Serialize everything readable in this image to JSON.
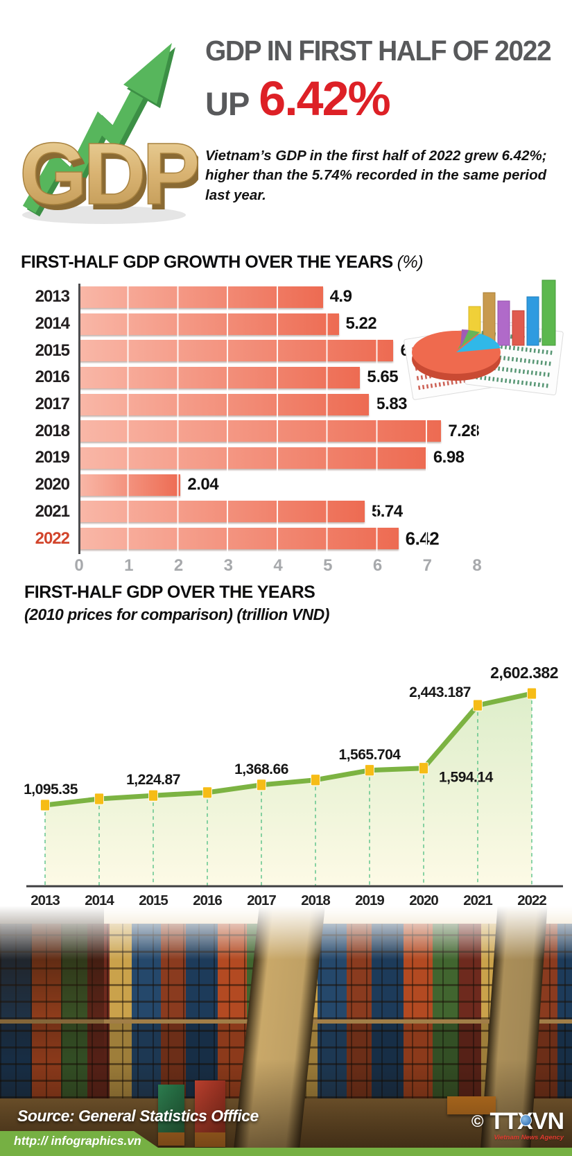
{
  "header": {
    "logo_text": "GDP",
    "title": "GDP IN FIRST HALF OF 2022",
    "up_label": "UP",
    "up_value": "6.42%",
    "description": "Vietnam’s GDP in the first half of 2022 grew 6.42%; higher than the 5.74% recorded in the same period last year.",
    "colors": {
      "title_gray": "#58595b",
      "accent_red": "#dd2026"
    }
  },
  "chart_data": [
    {
      "type": "bar",
      "title": "FIRST-HALF GDP GROWTH OVER THE YEARS",
      "unit_suffix": "(%)",
      "categories": [
        "2013",
        "2014",
        "2015",
        "2016",
        "2017",
        "2018",
        "2019",
        "2020",
        "2021",
        "2022"
      ],
      "values": [
        4.9,
        5.22,
        6.32,
        5.65,
        5.83,
        7.28,
        6.98,
        2.04,
        5.74,
        6.42
      ],
      "value_labels": [
        "4.9",
        "5.22",
        "6.32",
        "5.65",
        "5.83",
        "7.28",
        "6.98",
        "2.04",
        "5.74",
        "6.42"
      ],
      "xlim": [
        0,
        8
      ],
      "x_ticks": [
        "0",
        "1",
        "2",
        "3",
        "4",
        "5",
        "6",
        "7",
        "8"
      ],
      "highlight_category": "2022",
      "grid": true,
      "colors": {
        "bar_light": "#f9b7a7",
        "bar_dark": "#ed6b52",
        "highlight_year": "#d2452c",
        "tick_gray": "#a7a9ac"
      }
    },
    {
      "type": "area",
      "title": "FIRST-HALF GDP OVER THE YEARS",
      "subtitle": "(2010 prices for comparison) (trillion VND)",
      "x": [
        "2013",
        "2014",
        "2015",
        "2016",
        "2017",
        "2018",
        "2019",
        "2020",
        "2021",
        "2022"
      ],
      "values": [
        1095.35,
        1180,
        1224.87,
        1265,
        1368.66,
        1435,
        1565.704,
        1594.14,
        2443.187,
        2602.382
      ],
      "point_labels": [
        "1,095.35",
        "",
        "1,224.87",
        "",
        "1,368.66",
        "",
        "1,565.704",
        "1,594.14",
        "2,443.187",
        "2,602.382"
      ],
      "ylim": [
        0,
        2800
      ],
      "grid": false,
      "legend": "none",
      "colors": {
        "line_green": "#7cb342",
        "marker_gold": "#f6bc16",
        "dash_teal": "#3cb878",
        "area_top": "#dcedc8",
        "area_bottom": "#fdfae6",
        "baseline": "#3f3f41"
      }
    }
  ],
  "footer": {
    "source": "Source: General Statistics Offfice",
    "url": "http:// infographics.vn",
    "copyright": "©",
    "agency": "TTXVN",
    "agency_caption": "Vietnam News Agency",
    "banner_green": "#76b043"
  }
}
